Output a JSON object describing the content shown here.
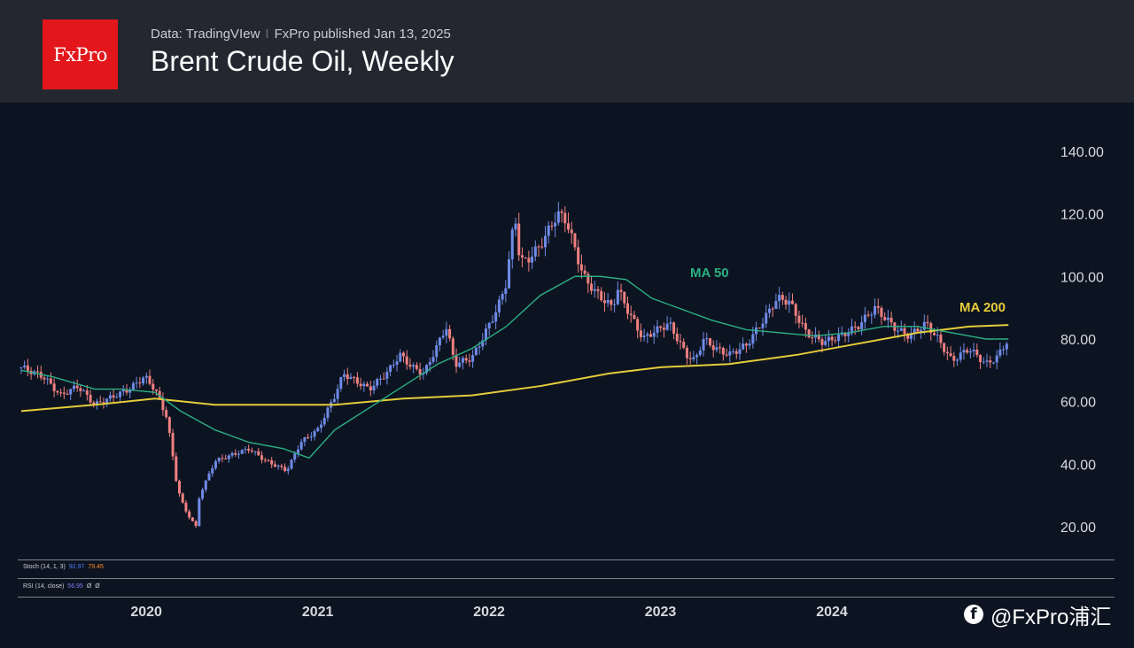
{
  "header": {
    "logo_text": "FxPro",
    "source": "Data: TradingVIew",
    "separator": "I",
    "published": "FxPro published Jan 13, 2025",
    "title": "Brent Crude Oil, Weekly"
  },
  "indicators": {
    "stoch_label": "Stoch (14, 1, 3)",
    "stoch_k": "92.97",
    "stoch_d": "79.45",
    "rsi_label": "RSI (14, close)",
    "rsi_value": "56.95",
    "rsi_extra1": "Ø",
    "rsi_extra2": "Ø"
  },
  "watermark": {
    "icon": "facebook-icon",
    "text": "@FxPro浦汇"
  },
  "colors": {
    "up": "#6f8be8",
    "down": "#f08080",
    "ma50": "#2bb083",
    "ma200": "#e5cc3a",
    "background": "#0d1421",
    "header": "#242730",
    "logo": "#e3161c"
  },
  "chart_data": {
    "type": "candlestick",
    "title": "Brent Crude Oil, Weekly",
    "y_ticks": [
      "140.00",
      "120.00",
      "100.00",
      "80.00",
      "60.00",
      "40.00",
      "20.00"
    ],
    "ylim": [
      13,
      147
    ],
    "x_ticks": [
      "2020",
      "2021",
      "2022",
      "2023",
      "2024"
    ],
    "xlim": [
      2019.26,
      2025.07
    ],
    "grid": false,
    "price_anchors": {
      "x": [
        2019.27,
        2019.4,
        2019.5,
        2019.6,
        2019.7,
        2019.9,
        2019.99,
        2020.05,
        2020.12,
        2020.18,
        2020.22,
        2020.29,
        2020.31,
        2020.4,
        2020.5,
        2020.6,
        2020.7,
        2020.82,
        2020.9,
        2021.0,
        2021.1,
        2021.15,
        2021.3,
        2021.4,
        2021.48,
        2021.55,
        2021.62,
        2021.75,
        2021.8,
        2021.9,
        2021.95,
        2022.05,
        2022.1,
        2022.15,
        2022.18,
        2022.22,
        2022.3,
        2022.4,
        2022.45,
        2022.55,
        2022.62,
        2022.72,
        2022.75,
        2022.82,
        2022.9,
        2022.95,
        2023.05,
        2023.15,
        2023.2,
        2023.25,
        2023.32,
        2023.4,
        2023.5,
        2023.6,
        2023.68,
        2023.75,
        2023.85,
        2023.95,
        2024.05,
        2024.15,
        2024.25,
        2024.38,
        2024.45,
        2024.55,
        2024.62,
        2024.7,
        2024.8,
        2024.9,
        2024.96,
        2025.03
      ],
      "y": [
        71,
        68,
        62,
        65,
        59,
        64,
        68,
        64,
        55,
        33,
        26,
        20,
        30,
        41,
        43,
        45,
        41,
        38,
        47,
        51,
        62,
        69,
        64,
        69,
        75,
        71,
        69,
        84,
        72,
        74,
        79,
        90,
        98,
        120,
        105,
        105,
        110,
        120,
        118,
        100,
        95,
        90,
        96,
        88,
        80,
        82,
        85,
        75,
        73,
        80,
        77,
        75,
        78,
        86,
        93,
        92,
        82,
        79,
        81,
        84,
        90,
        83,
        81,
        85,
        80,
        73,
        77,
        72,
        74,
        80
      ]
    },
    "series": [
      {
        "name": "MA 50",
        "x": [
          2019.27,
          2019.45,
          2019.7,
          2019.85,
          2020.05,
          2020.2,
          2020.4,
          2020.6,
          2020.8,
          2020.95,
          2021.1,
          2021.3,
          2021.5,
          2021.7,
          2021.9,
          2022.1,
          2022.3,
          2022.5,
          2022.65,
          2022.8,
          2022.95,
          2023.1,
          2023.3,
          2023.5,
          2023.7,
          2023.9,
          2024.1,
          2024.3,
          2024.5,
          2024.7,
          2024.9,
          2025.03
        ],
        "y": [
          70,
          68,
          64,
          64,
          63,
          57,
          51,
          47,
          45,
          42,
          51,
          58,
          65,
          72,
          77,
          84,
          94,
          100,
          100,
          99,
          93,
          90,
          86,
          83,
          82,
          81,
          82,
          84,
          84,
          82,
          80,
          80
        ]
      },
      {
        "name": "MA 200",
        "x": [
          2019.27,
          2019.7,
          2020.05,
          2020.4,
          2020.8,
          2021.1,
          2021.5,
          2021.9,
          2022.3,
          2022.7,
          2023.0,
          2023.4,
          2023.8,
          2024.1,
          2024.5,
          2024.8,
          2025.03
        ],
        "y": [
          57,
          59,
          61,
          59,
          59,
          59,
          61,
          62,
          65,
          69,
          71,
          72,
          75,
          78,
          82,
          84,
          84.5
        ]
      }
    ],
    "annotations": [
      "MA 50",
      "MA 200"
    ]
  }
}
